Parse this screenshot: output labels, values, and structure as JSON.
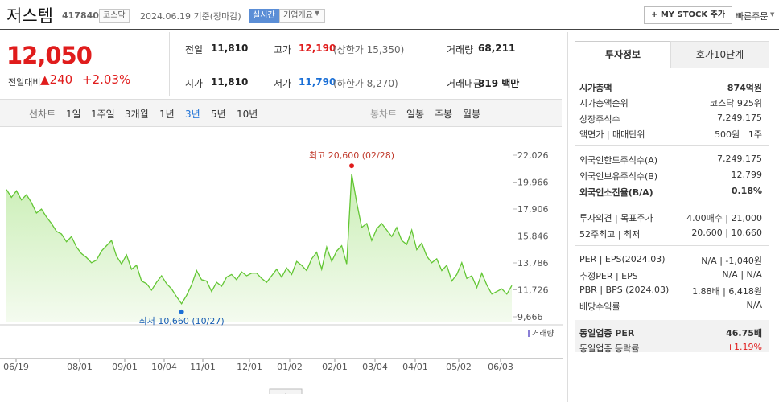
{
  "header": {
    "name": "저스템",
    "code": "417840",
    "market": "코스닥",
    "date": "2024.06.19 기준(장마감)",
    "realtime": "실시간",
    "overview": "기업개요",
    "mystock": "+ MY STOCK 추가",
    "quick_order": "빠른주문"
  },
  "price": {
    "current": "12,050",
    "change_label": "전일대비",
    "change": "▲240",
    "rate": "+2.03%"
  },
  "summary": [
    [
      {
        "label": "전일",
        "value": "11,810"
      },
      {
        "label": "고가",
        "value": "12,190",
        "note": "(상한가 15,350)"
      },
      {
        "label": "거래량",
        "value": "68,211"
      }
    ],
    [
      {
        "label": "시가",
        "value": "11,810"
      },
      {
        "label": "저가",
        "value": "11,790",
        "note": "(하한가 8,270)"
      },
      {
        "label": "거래대금",
        "value": "819 백만"
      }
    ]
  ],
  "tabs": {
    "line_label": "선차트",
    "line": [
      "1일",
      "1주일",
      "3개월",
      "1년",
      "3년",
      "5년",
      "10년"
    ],
    "candle_label": "봉차트",
    "candle": [
      "일봉",
      "주봉",
      "월봉"
    ]
  },
  "chart": {
    "type": "line",
    "color": "#63c634",
    "values": [
      19400,
      18800,
      19300,
      18600,
      19000,
      18400,
      17600,
      17900,
      17300,
      16800,
      16200,
      16000,
      15400,
      15800,
      15000,
      14500,
      14200,
      13800,
      14000,
      14700,
      15100,
      15500,
      14300,
      13700,
      14400,
      13300,
      13600,
      12400,
      12200,
      11700,
      12300,
      12800,
      12200,
      11800,
      11200,
      10660,
      11300,
      12100,
      13200,
      12500,
      12400,
      11600,
      12300,
      12000,
      12700,
      12900,
      12500,
      13100,
      12800,
      13000,
      13000,
      12600,
      12300,
      12800,
      13300,
      12700,
      13400,
      12900,
      13900,
      13600,
      13200,
      14100,
      14600,
      13300,
      15000,
      13900,
      14700,
      15100,
      13700,
      20600,
      18400,
      16500,
      16800,
      15500,
      16400,
      16800,
      16300,
      15800,
      16500,
      15500,
      15200,
      16300,
      14800,
      15300,
      14300,
      13800,
      14100,
      13200,
      13600,
      12400,
      12900,
      13800,
      12600,
      12800,
      11900,
      13000,
      12100,
      11400,
      11600,
      11800,
      11400,
      12050
    ],
    "ylim": [
      9666,
      22026
    ],
    "yticks": [
      {
        "value": 9666,
        "label": "9,666"
      },
      {
        "value": 11726,
        "label": "11,726"
      },
      {
        "value": 13786,
        "label": "13,786"
      },
      {
        "value": 15846,
        "label": "15,846"
      },
      {
        "value": 17906,
        "label": "17,906"
      },
      {
        "value": 19966,
        "label": "19,966"
      },
      {
        "value": 22026,
        "label": "22,026"
      }
    ],
    "xticks": [
      "06/19",
      "08/01",
      "09/01",
      "10/04",
      "11/01",
      "12/01",
      "01/02",
      "02/01",
      "03/04",
      "04/01",
      "05/02",
      "06/03"
    ],
    "high_label": "최고 20,600 (02/28)",
    "low_label": "최저 10,660 (10/27)",
    "volume_label": "거래량"
  },
  "info": {
    "tabs": [
      "투자정보",
      "호가10단계"
    ],
    "sections": [
      [
        {
          "label": "시가총액",
          "value": "874억원",
          "bold": true
        },
        {
          "label": "시가총액순위",
          "value": "코스닥 925위"
        },
        {
          "label": "상장주식수",
          "value": "7,249,175"
        },
        {
          "label": "액면가 | 매매단위",
          "value": "500원 | 1주"
        }
      ],
      [
        {
          "label": "외국인한도주식수(A)",
          "value": "7,249,175"
        },
        {
          "label": "외국인보유주식수(B)",
          "value": "12,799"
        },
        {
          "label": "외국인소진율(B/A)",
          "value": "0.18%",
          "bold": true
        }
      ],
      [
        {
          "label": "투자의견 | 목표주가",
          "value": "4.00매수 | 21,000"
        },
        {
          "label": "52주최고 | 최저",
          "value": "20,600 | 10,660"
        }
      ],
      [
        {
          "label": "PER | EPS(2024.03)",
          "value": "N/A | -1,040원"
        },
        {
          "label": "추정PER | EPS",
          "value": "N/A | N/A"
        },
        {
          "label": "PBR | BPS (2024.03)",
          "value": "1.88배 | 6,418원"
        },
        {
          "label": "배당수익률",
          "value": "N/A"
        }
      ],
      [
        {
          "label": "동일업종 PER",
          "value": "46.75배",
          "bold": true
        },
        {
          "label": "동일업종 등락률",
          "value": "+1.19%",
          "red": true
        }
      ]
    ]
  }
}
